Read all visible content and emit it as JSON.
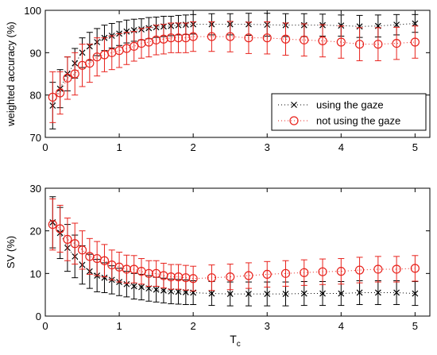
{
  "chart_data": [
    {
      "type": "scatter",
      "title": "",
      "xlabel": "",
      "ylabel": "weighted accuracy (%)",
      "xlim": [
        0,
        5.2
      ],
      "ylim": [
        70,
        100
      ],
      "xticks": [
        "0",
        "1",
        "2",
        "3",
        "4",
        "5"
      ],
      "yticks": [
        "70",
        "80",
        "90",
        "100"
      ],
      "grid": false,
      "legend_position": "center-right",
      "series": [
        {
          "name": "using the gaze",
          "color": "#000000",
          "marker": "x",
          "line": "dotted",
          "x": [
            0.1,
            0.2,
            0.3,
            0.4,
            0.5,
            0.6,
            0.7,
            0.8,
            0.9,
            1.0,
            1.1,
            1.2,
            1.3,
            1.4,
            1.5,
            1.6,
            1.7,
            1.8,
            1.9,
            2.0,
            2.25,
            2.5,
            2.75,
            3.0,
            3.25,
            3.5,
            3.75,
            4.0,
            4.25,
            4.5,
            4.75,
            5.0
          ],
          "y": [
            77.5,
            81.5,
            85,
            87.5,
            90,
            91.5,
            92.5,
            93.5,
            94,
            94.5,
            95,
            95.3,
            95.5,
            95.8,
            96,
            96.2,
            96.3,
            96.5,
            96.6,
            96.7,
            96.7,
            96.7,
            96.7,
            96.6,
            96.5,
            96.5,
            96.5,
            96.4,
            96.2,
            96.3,
            96.6,
            96.9
          ],
          "err": [
            5.5,
            4.5,
            4,
            3.5,
            3.5,
            3.3,
            3.2,
            3,
            2.9,
            2.8,
            2.7,
            2.6,
            2.5,
            2.5,
            2.4,
            2.4,
            2.3,
            2.3,
            2.3,
            2.3,
            2.5,
            2.5,
            2.6,
            2.7,
            2.7,
            2.7,
            2.6,
            2.5,
            2.6,
            2.6,
            2.4,
            2.1
          ]
        },
        {
          "name": "not using the gaze",
          "color": "#e8221c",
          "marker": "o",
          "line": "dotted",
          "x": [
            0.1,
            0.2,
            0.3,
            0.4,
            0.5,
            0.6,
            0.7,
            0.8,
            0.9,
            1.0,
            1.1,
            1.2,
            1.3,
            1.4,
            1.5,
            1.6,
            1.7,
            1.8,
            1.9,
            2.0,
            2.25,
            2.5,
            2.75,
            3.0,
            3.25,
            3.5,
            3.75,
            4.0,
            4.25,
            4.5,
            4.75,
            5.0
          ],
          "y": [
            79.5,
            80.5,
            84,
            85,
            87,
            87.5,
            89,
            89.5,
            90,
            90.5,
            91,
            91.5,
            92.2,
            92.5,
            93,
            93.2,
            93.5,
            93.5,
            93.5,
            93.8,
            93.8,
            93.8,
            93.5,
            93.5,
            93.2,
            93,
            92.8,
            92.5,
            92,
            92,
            92.2,
            92.5
          ],
          "err": [
            6,
            5,
            5,
            5,
            5,
            4.5,
            4.5,
            4,
            4,
            4,
            3.8,
            3.5,
            3.5,
            3.5,
            3.5,
            3.5,
            3.5,
            3.5,
            3.5,
            3.5,
            3.5,
            3.6,
            3.7,
            3.8,
            3.8,
            3.8,
            3.8,
            3.8,
            3.9,
            3.9,
            3.8,
            3.8
          ]
        }
      ]
    },
    {
      "type": "scatter",
      "title": "",
      "xlabel": "T",
      "xlabel_subscript": "c",
      "ylabel": "SV (%)",
      "xlim": [
        0,
        5.2
      ],
      "ylim": [
        0,
        30
      ],
      "xticks": [
        "0",
        "1",
        "2",
        "3",
        "4",
        "5"
      ],
      "yticks": [
        "0",
        "10",
        "20",
        "30"
      ],
      "grid": false,
      "series": [
        {
          "name": "using the gaze",
          "color": "#000000",
          "marker": "x",
          "line": "dotted",
          "x": [
            0.1,
            0.2,
            0.3,
            0.4,
            0.5,
            0.6,
            0.7,
            0.8,
            0.9,
            1.0,
            1.1,
            1.2,
            1.3,
            1.4,
            1.5,
            1.6,
            1.7,
            1.8,
            1.9,
            2.0,
            2.25,
            2.5,
            2.75,
            3.0,
            3.25,
            3.5,
            3.75,
            4.0,
            4.25,
            4.5,
            4.75,
            5.0
          ],
          "y": [
            22,
            19.5,
            16,
            14,
            12,
            10.5,
            9.5,
            9,
            8.5,
            8,
            7.5,
            7,
            6.8,
            6.5,
            6.2,
            6,
            5.8,
            5.7,
            5.6,
            5.5,
            5.3,
            5.2,
            5.2,
            5.2,
            5.2,
            5.3,
            5.3,
            5.3,
            5.5,
            5.5,
            5.5,
            5.3
          ],
          "err": [
            6,
            6,
            5.5,
            5,
            4.5,
            4,
            3.8,
            3.5,
            3.3,
            3.2,
            3,
            3,
            3,
            3,
            2.9,
            2.9,
            2.9,
            2.9,
            2.9,
            2.8,
            2.8,
            2.8,
            2.8,
            2.8,
            2.8,
            2.8,
            2.8,
            2.8,
            2.8,
            2.8,
            2.8,
            2.8
          ]
        },
        {
          "name": "not using the gaze",
          "color": "#e8221c",
          "marker": "o",
          "line": "dotted",
          "x": [
            0.1,
            0.2,
            0.3,
            0.4,
            0.5,
            0.6,
            0.7,
            0.8,
            0.9,
            1.0,
            1.1,
            1.2,
            1.3,
            1.4,
            1.5,
            1.6,
            1.7,
            1.8,
            1.9,
            2.0,
            2.25,
            2.5,
            2.75,
            3.0,
            3.25,
            3.5,
            3.75,
            4.0,
            4.25,
            4.5,
            4.75,
            5.0
          ],
          "y": [
            21.5,
            20.5,
            18,
            17,
            15.5,
            14,
            13.5,
            13,
            12,
            11.5,
            11,
            11,
            10.5,
            10,
            10,
            9.5,
            9.2,
            9.2,
            9,
            8.8,
            9,
            9.2,
            9.5,
            9.8,
            10,
            10.2,
            10.4,
            10.5,
            10.8,
            11,
            11,
            11.2
          ],
          "err": [
            6,
            5.5,
            5,
            4.8,
            4.5,
            4.2,
            4,
            3.8,
            3.5,
            3.5,
            3.3,
            3.2,
            3,
            3,
            3,
            2.9,
            2.9,
            2.9,
            2.9,
            2.9,
            3,
            3,
            3,
            3,
            3,
            3,
            3,
            3,
            3,
            3,
            3,
            3
          ]
        }
      ]
    }
  ]
}
